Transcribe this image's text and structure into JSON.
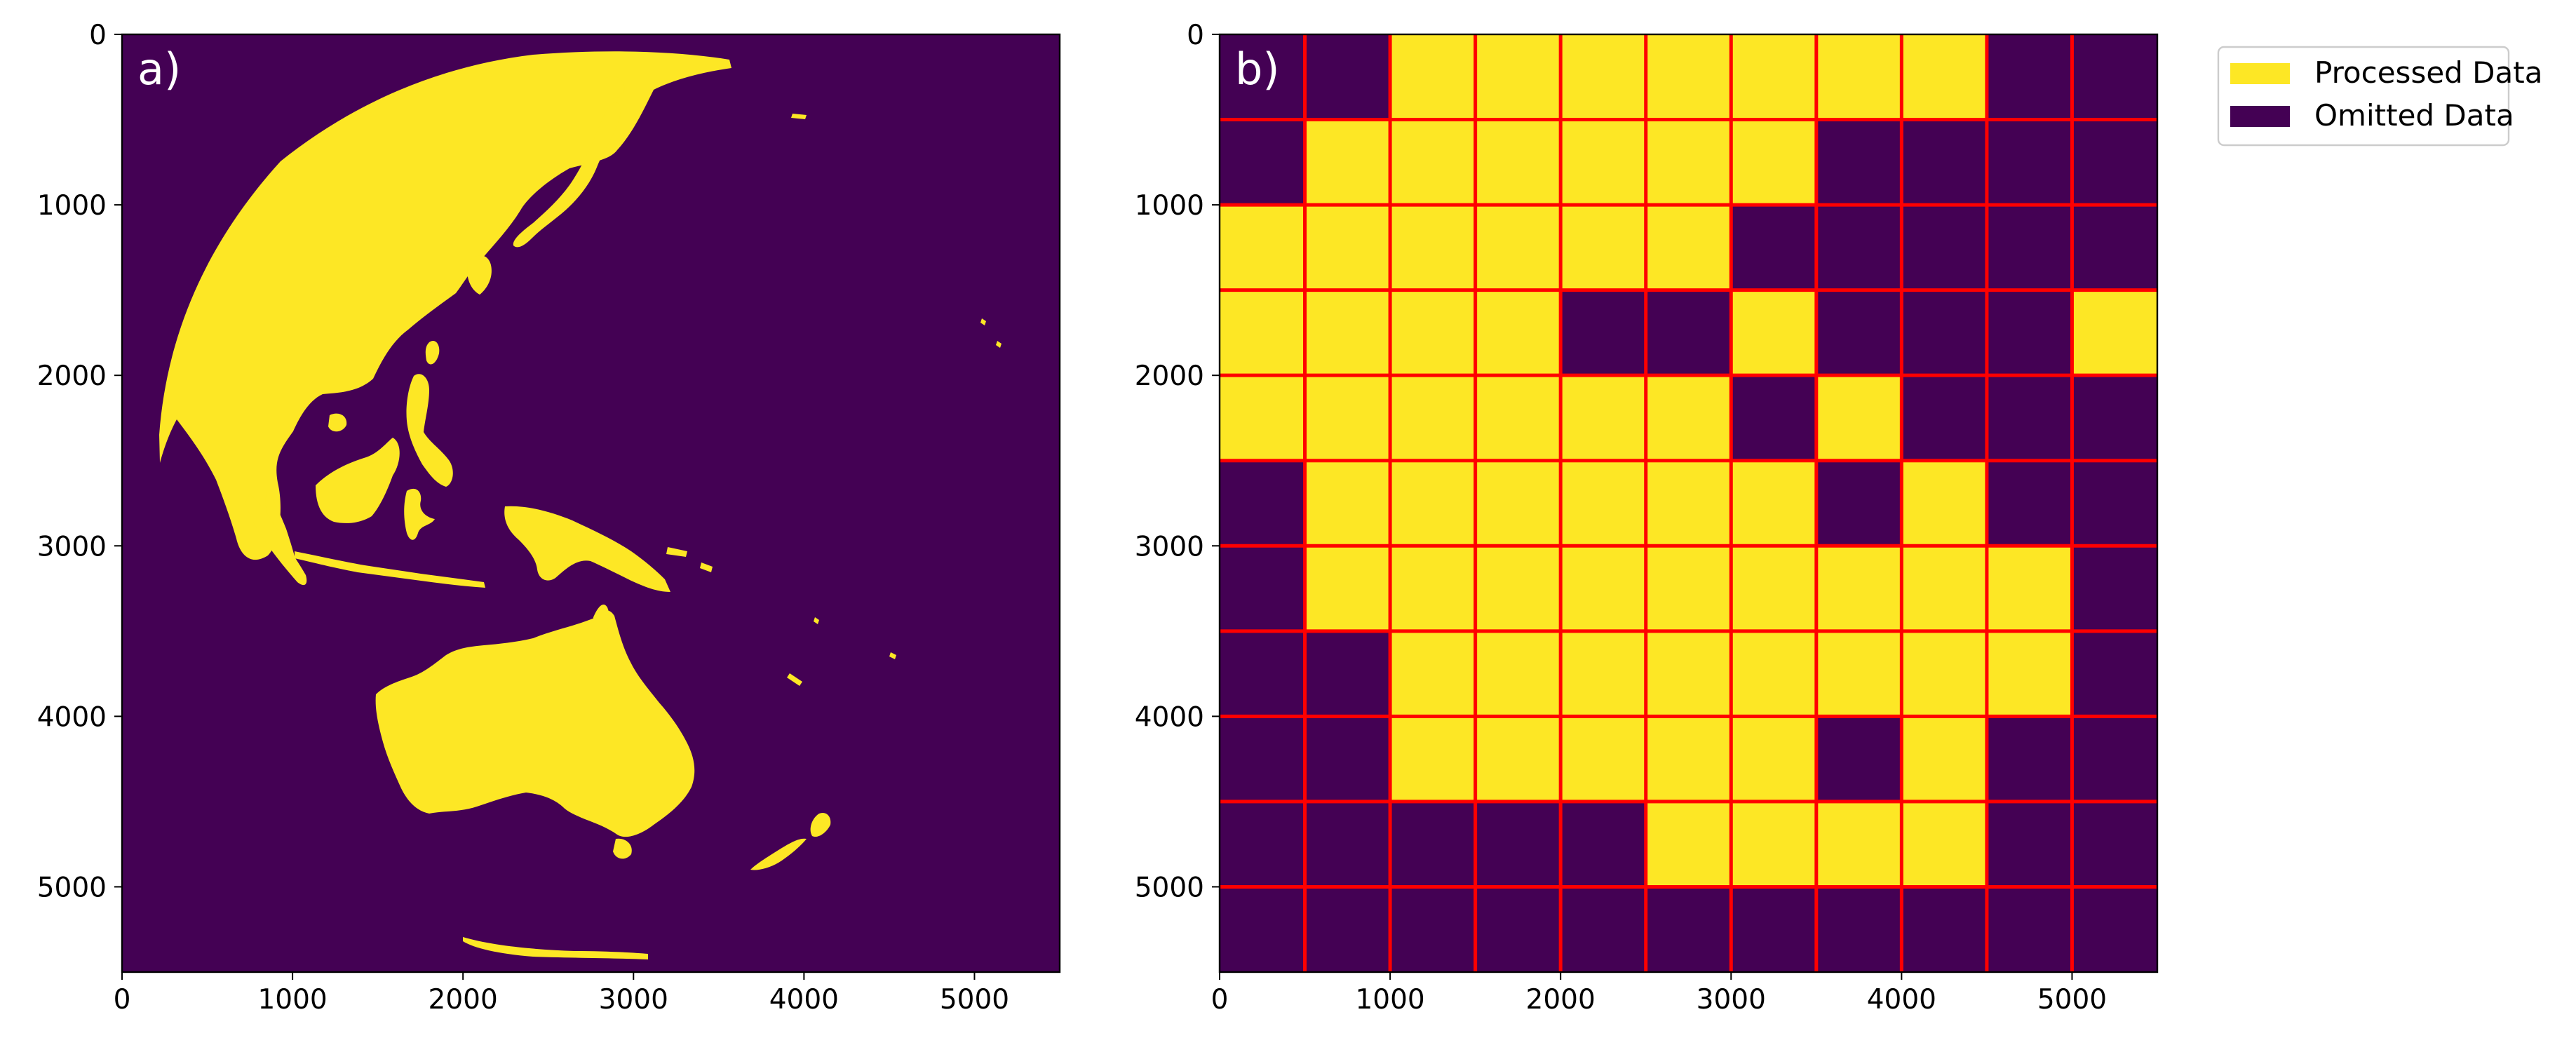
{
  "chart_data": [
    {
      "type": "heatmap",
      "panel_label": "a)",
      "description_role": "binary land mask image",
      "xlim": [
        0,
        5500
      ],
      "ylim": [
        5500,
        0
      ],
      "xticks": [
        0,
        1000,
        2000,
        3000,
        4000,
        5000
      ],
      "yticks": [
        0,
        1000,
        2000,
        3000,
        4000,
        5000
      ],
      "xtick_labels": [
        "0",
        "1000",
        "2000",
        "3000",
        "4000",
        "5000"
      ],
      "ytick_labels": [
        "0",
        "1000",
        "2000",
        "3000",
        "4000",
        "5000"
      ]
    },
    {
      "type": "heatmap",
      "panel_label": "b)",
      "xlim": [
        0,
        5500
      ],
      "ylim": [
        5500,
        0
      ],
      "tile_size": 500,
      "rows": 11,
      "cols": 11,
      "grid_color": "#ff0000",
      "xticks": [
        0,
        1000,
        2000,
        3000,
        4000,
        5000
      ],
      "yticks": [
        0,
        1000,
        2000,
        3000,
        4000,
        5000
      ],
      "xtick_labels": [
        "0",
        "1000",
        "2000",
        "3000",
        "4000",
        "5000"
      ],
      "ytick_labels": [
        "0",
        "1000",
        "2000",
        "3000",
        "4000",
        "5000"
      ],
      "values": [
        [
          0,
          0,
          1,
          1,
          1,
          1,
          1,
          1,
          1,
          0,
          0
        ],
        [
          0,
          1,
          1,
          1,
          1,
          1,
          1,
          0,
          0,
          0,
          0
        ],
        [
          1,
          1,
          1,
          1,
          1,
          1,
          0,
          0,
          0,
          0,
          0
        ],
        [
          1,
          1,
          1,
          1,
          0,
          0,
          1,
          0,
          0,
          0,
          1
        ],
        [
          1,
          1,
          1,
          1,
          1,
          1,
          0,
          1,
          0,
          0,
          0
        ],
        [
          0,
          1,
          1,
          1,
          1,
          1,
          1,
          0,
          1,
          0,
          0
        ],
        [
          0,
          1,
          1,
          1,
          1,
          1,
          1,
          1,
          1,
          1,
          0
        ],
        [
          0,
          0,
          1,
          1,
          1,
          1,
          1,
          1,
          1,
          1,
          0
        ],
        [
          0,
          0,
          1,
          1,
          1,
          1,
          1,
          0,
          1,
          0,
          0
        ],
        [
          0,
          0,
          0,
          0,
          0,
          1,
          1,
          1,
          1,
          0,
          0
        ],
        [
          0,
          0,
          0,
          0,
          0,
          0,
          0,
          0,
          0,
          0,
          0
        ]
      ]
    }
  ],
  "legend": {
    "items": [
      {
        "label": "Processed Data",
        "color": "#fde725"
      },
      {
        "label": "Omitted Data",
        "color": "#440154"
      }
    ]
  },
  "colors": {
    "yellow": "#fde725",
    "purple": "#440154"
  }
}
